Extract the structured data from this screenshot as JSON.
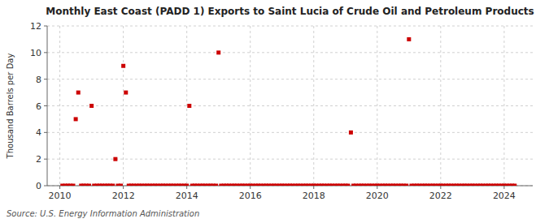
{
  "chart_data": {
    "type": "scatter",
    "title": "Monthly East Coast (PADD 1) Exports to Saint Lucia of Crude Oil and Petroleum Products",
    "ylabel": "Thousand Barrels per Day",
    "annotations": [
      "Source: U.S. Energy Information Administration"
    ],
    "color": "#cc0000",
    "marker": "square",
    "grid": true,
    "xlim": [
      2009.6,
      2024.9
    ],
    "ylim": [
      0,
      12
    ],
    "xticks": [
      2010,
      2012,
      2014,
      2016,
      2018,
      2020,
      2022,
      2024
    ],
    "yticks": [
      0,
      2,
      4,
      6,
      8,
      10,
      12
    ],
    "x": [
      2010.08,
      2010.17,
      2010.25,
      2010.33,
      2010.42,
      2010.5,
      2010.58,
      2010.67,
      2010.75,
      2010.83,
      2010.92,
      2011.0,
      2011.08,
      2011.17,
      2011.25,
      2011.33,
      2011.42,
      2011.5,
      2011.58,
      2011.67,
      2011.75,
      2011.83,
      2011.92,
      2012.0,
      2012.08,
      2012.17,
      2012.25,
      2012.33,
      2012.42,
      2012.5,
      2012.58,
      2012.67,
      2012.75,
      2012.83,
      2012.92,
      2013.0,
      2013.08,
      2013.17,
      2013.25,
      2013.33,
      2013.42,
      2013.5,
      2013.58,
      2013.67,
      2013.75,
      2013.83,
      2013.92,
      2014.0,
      2014.08,
      2014.17,
      2014.25,
      2014.33,
      2014.42,
      2014.5,
      2014.58,
      2014.67,
      2014.75,
      2014.83,
      2014.92,
      2015.0,
      2015.08,
      2015.17,
      2015.25,
      2015.33,
      2015.42,
      2015.5,
      2015.58,
      2015.67,
      2015.75,
      2015.83,
      2015.92,
      2016.0,
      2016.08,
      2016.17,
      2016.25,
      2016.33,
      2016.42,
      2016.5,
      2016.58,
      2016.67,
      2016.75,
      2016.83,
      2016.92,
      2017.0,
      2017.08,
      2017.17,
      2017.25,
      2017.33,
      2017.42,
      2017.5,
      2017.58,
      2017.67,
      2017.75,
      2017.83,
      2017.92,
      2018.0,
      2018.08,
      2018.17,
      2018.25,
      2018.33,
      2018.42,
      2018.5,
      2018.58,
      2018.67,
      2018.75,
      2018.83,
      2018.92,
      2019.0,
      2019.08,
      2019.17,
      2019.25,
      2019.33,
      2019.42,
      2019.5,
      2019.58,
      2019.67,
      2019.75,
      2019.83,
      2019.92,
      2020.0,
      2020.08,
      2020.17,
      2020.25,
      2020.33,
      2020.42,
      2020.5,
      2020.58,
      2020.67,
      2020.75,
      2020.83,
      2020.92,
      2021.0,
      2021.08,
      2021.17,
      2021.25,
      2021.33,
      2021.42,
      2021.5,
      2021.58,
      2021.67,
      2021.75,
      2021.83,
      2021.92,
      2022.0,
      2022.08,
      2022.17,
      2022.25,
      2022.33,
      2022.42,
      2022.5,
      2022.58,
      2022.67,
      2022.75,
      2022.83,
      2022.92,
      2023.0,
      2023.08,
      2023.17,
      2023.25,
      2023.33,
      2023.42,
      2023.5,
      2023.58,
      2023.67,
      2023.75,
      2023.83,
      2023.92,
      2024.0,
      2024.08,
      2024.17,
      2024.25,
      2024.33
    ],
    "values": [
      0,
      0,
      0,
      0,
      0,
      5,
      7,
      0,
      0,
      0,
      0,
      6,
      0,
      0,
      0,
      0,
      0,
      0,
      0,
      0,
      2,
      0,
      0,
      9,
      7,
      0,
      0,
      0,
      0,
      0,
      0,
      0,
      0,
      0,
      0,
      0,
      0,
      0,
      0,
      0,
      0,
      0,
      0,
      0,
      0,
      0,
      0,
      0,
      6,
      0,
      0,
      0,
      0,
      0,
      0,
      0,
      0,
      0,
      0,
      10,
      0,
      0,
      0,
      0,
      0,
      0,
      0,
      0,
      0,
      0,
      0,
      0,
      0,
      0,
      0,
      0,
      0,
      0,
      0,
      0,
      0,
      0,
      0,
      0,
      0,
      0,
      0,
      0,
      0,
      0,
      0,
      0,
      0,
      0,
      0,
      0,
      0,
      0,
      0,
      0,
      0,
      0,
      0,
      0,
      0,
      0,
      0,
      0,
      0,
      4,
      0,
      0,
      0,
      0,
      0,
      0,
      0,
      0,
      0,
      0,
      0,
      0,
      0,
      0,
      0,
      0,
      0,
      0,
      0,
      0,
      0,
      11,
      0,
      0,
      0,
      0,
      0,
      0,
      0,
      0,
      0,
      0,
      0,
      0,
      0,
      0,
      0,
      0,
      0,
      0,
      0,
      0,
      0,
      0,
      0,
      0,
      0,
      0,
      0,
      0,
      0,
      0,
      0,
      0,
      0,
      0,
      0,
      0,
      0,
      0,
      0,
      0
    ]
  }
}
